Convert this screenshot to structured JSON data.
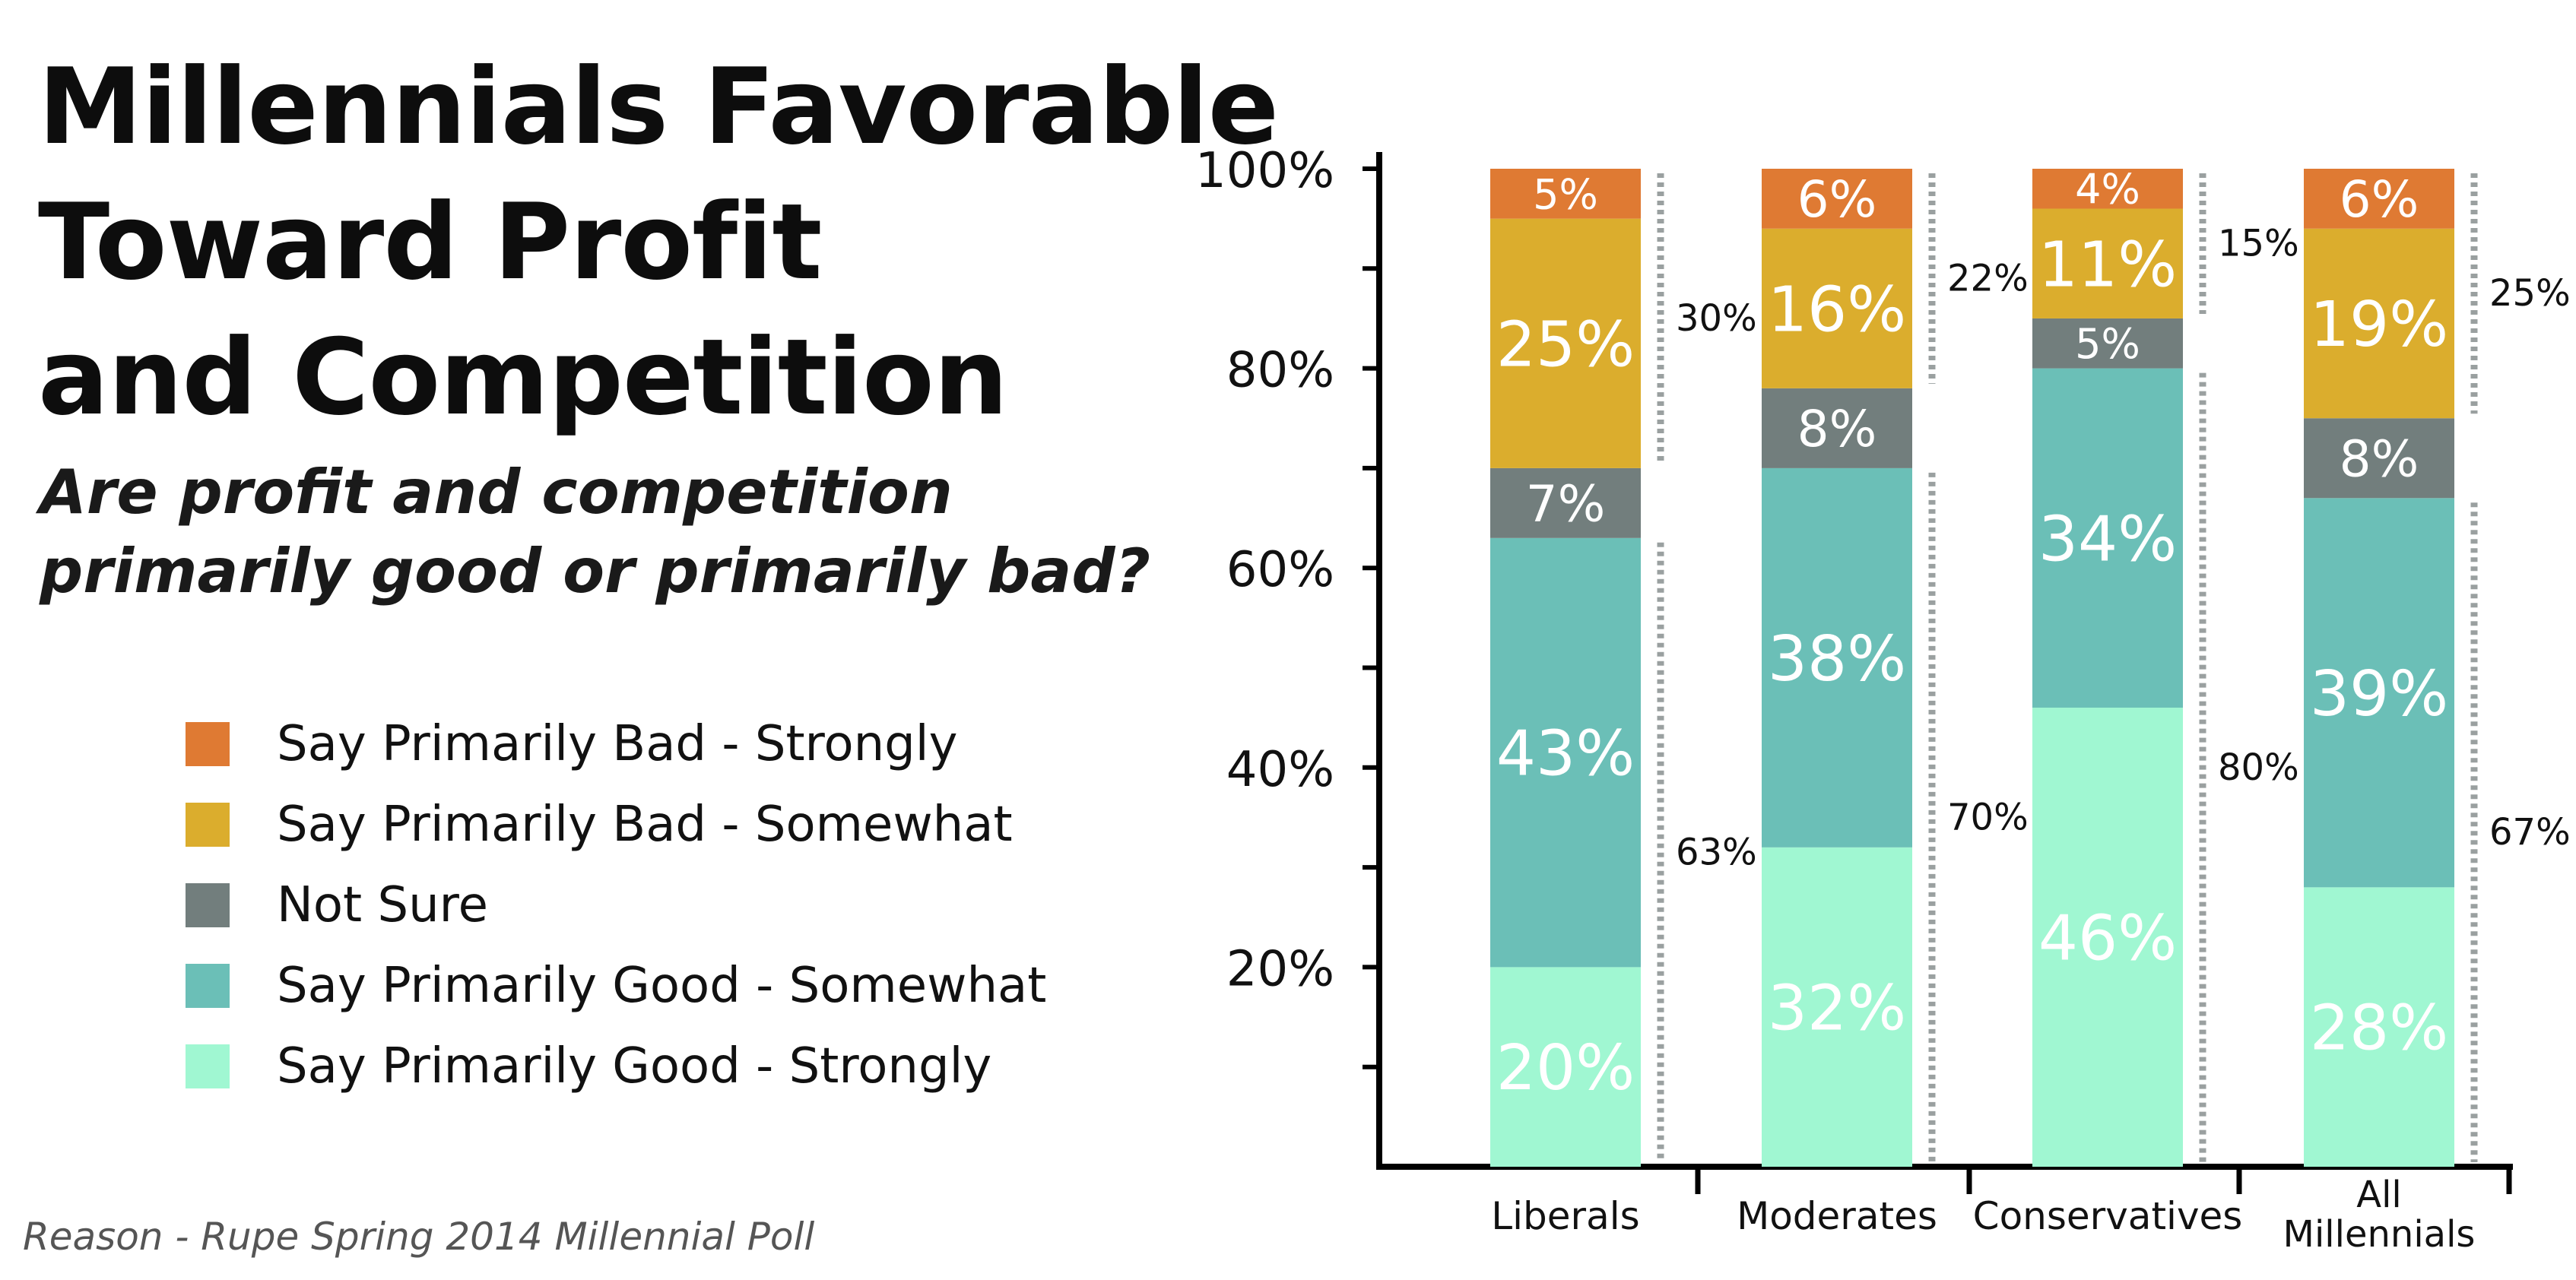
{
  "title_lines": [
    "Millennials Favorable",
    "Toward Profit",
    "and Competition"
  ],
  "subtitle_lines": [
    "Are profit and competition",
    "primarily good or primarily bad?"
  ],
  "source": "Reason - Rupe Spring 2014 Millennial Poll",
  "colors": {
    "bad_strongly": "#DF7A33",
    "bad_somewhat": "#DBAD2D",
    "not_sure": "#727E7D",
    "good_somewhat": "#6BBFB7",
    "good_strongly": "#A0F7D2"
  },
  "legend": [
    {
      "label": "Say Primarily Bad - Strongly",
      "color": "#DF7A33"
    },
    {
      "label": "Say Primarily Bad - Somewhat",
      "color": "#DBAD2D"
    },
    {
      "label": "Not Sure",
      "color": "#727E7D"
    },
    {
      "label": "Say Primarily Good - Somewhat",
      "color": "#6BBFB7"
    },
    {
      "label": "Say Primarily Good - Strongly",
      "color": "#A0F7D2"
    }
  ],
  "chart_data": {
    "type": "bar",
    "stacked": true,
    "categories": [
      "Liberals",
      "Moderates",
      "Conservatives",
      "All Millennials"
    ],
    "category_label_lines": [
      [
        "Liberals"
      ],
      [
        "Moderates"
      ],
      [
        "Conservatives"
      ],
      [
        "All",
        "Millennials"
      ]
    ],
    "yticks": [
      "20%",
      "40%",
      "60%",
      "80%",
      "100%"
    ],
    "ylim": [
      0,
      100
    ],
    "series": [
      {
        "name": "Say Primarily Good - Strongly",
        "color": "#A0F7D2",
        "values": [
          20,
          32,
          46,
          28
        ],
        "labels": [
          "20%",
          "32%",
          "46%",
          "28%"
        ]
      },
      {
        "name": "Say Primarily Good - Somewhat",
        "color": "#6BBFB7",
        "values": [
          43,
          38,
          34,
          39
        ],
        "labels": [
          "43%",
          "38%",
          "34%",
          "39%"
        ]
      },
      {
        "name": "Not Sure",
        "color": "#727E7D",
        "values": [
          7,
          8,
          5,
          8
        ],
        "labels": [
          "7%",
          "8%",
          "5%",
          "8%"
        ]
      },
      {
        "name": "Say Primarily Bad - Somewhat",
        "color": "#DBAD2D",
        "values": [
          25,
          16,
          11,
          19
        ],
        "labels": [
          "25%",
          "16%",
          "11%",
          "19%"
        ]
      },
      {
        "name": "Say Primarily Bad - Strongly",
        "color": "#DF7A33",
        "values": [
          5,
          6,
          4,
          6
        ],
        "labels": [
          "5%",
          "6%",
          "4%",
          "6%"
        ]
      }
    ],
    "good_totals": [
      "63%",
      "70%",
      "80%",
      "67%"
    ],
    "bad_totals": [
      "30%",
      "22%",
      "15%",
      "25%"
    ]
  }
}
